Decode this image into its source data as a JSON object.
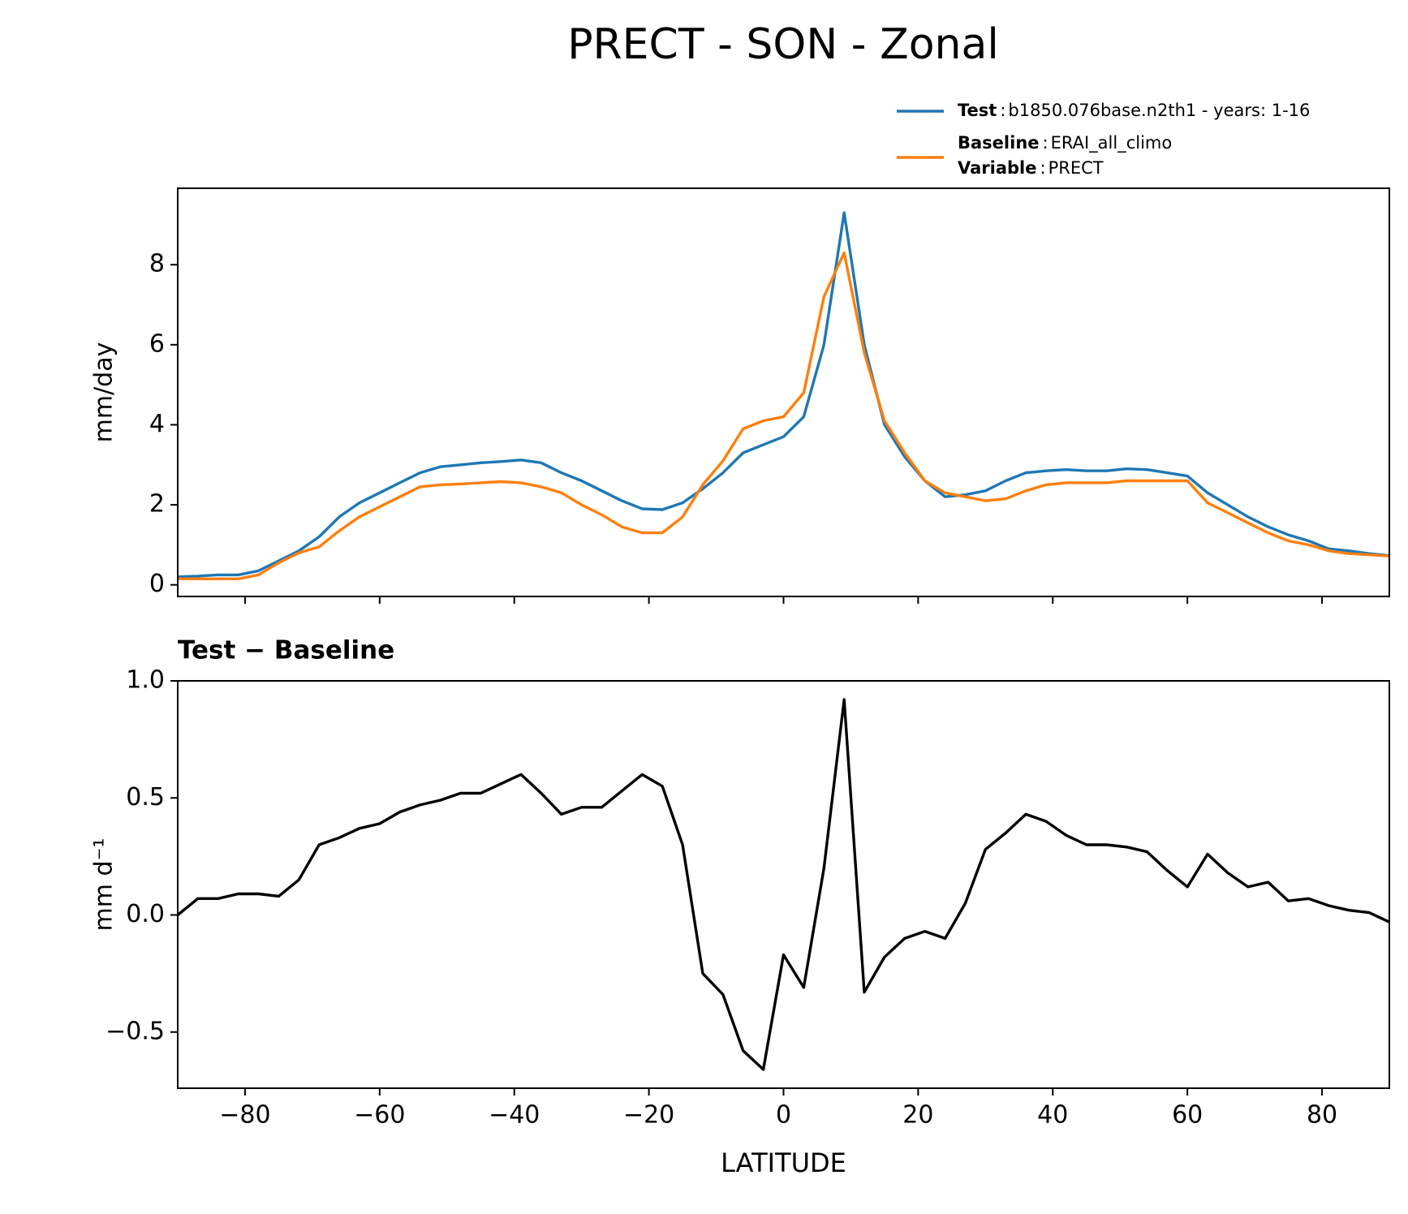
{
  "title": "PRECT - SON - Zonal",
  "chart_data": [
    {
      "type": "line",
      "ylabel": "mm/day",
      "legend": {
        "separator": ":",
        "entries": [
          {
            "name": "Test",
            "text": "b1850.076base.n2th1 - years: 1-16"
          },
          {
            "name": "Baseline",
            "text": "ERAI_all_climo"
          },
          {
            "name": "Variable",
            "text": "PRECT"
          }
        ]
      },
      "x": [
        -90,
        -87,
        -84,
        -81,
        -78,
        -75,
        -72,
        -69,
        -66,
        -63,
        -60,
        -57,
        -54,
        -51,
        -48,
        -45,
        -42,
        -39,
        -36,
        -33,
        -30,
        -27,
        -24,
        -21,
        -18,
        -15,
        -12,
        -9,
        -6,
        -3,
        0,
        3,
        6,
        9,
        12,
        15,
        18,
        21,
        24,
        27,
        30,
        33,
        36,
        39,
        42,
        45,
        48,
        51,
        54,
        57,
        60,
        63,
        66,
        69,
        72,
        75,
        78,
        81,
        84,
        87,
        90
      ],
      "series": [
        {
          "name": "Test",
          "color": "#1f77b4",
          "values": [
            0.2,
            0.22,
            0.25,
            0.25,
            0.35,
            0.6,
            0.85,
            1.2,
            1.7,
            2.05,
            2.3,
            2.55,
            2.8,
            2.95,
            3.0,
            3.05,
            3.08,
            3.12,
            3.05,
            2.8,
            2.6,
            2.35,
            2.1,
            1.9,
            1.88,
            2.05,
            2.4,
            2.8,
            3.3,
            3.5,
            3.7,
            4.2,
            6.0,
            9.3,
            6.0,
            4.0,
            3.2,
            2.6,
            2.2,
            2.25,
            2.35,
            2.6,
            2.8,
            2.85,
            2.88,
            2.85,
            2.85,
            2.9,
            2.88,
            2.8,
            2.72,
            2.3,
            2.0,
            1.7,
            1.45,
            1.25,
            1.1,
            0.9,
            0.85,
            0.78,
            0.73
          ]
        },
        {
          "name": "Baseline",
          "color": "#ff7f0e",
          "values": [
            0.15,
            0.15,
            0.15,
            0.15,
            0.25,
            0.55,
            0.8,
            0.95,
            1.35,
            1.7,
            1.95,
            2.2,
            2.45,
            2.5,
            2.52,
            2.55,
            2.58,
            2.55,
            2.45,
            2.3,
            2.0,
            1.75,
            1.45,
            1.3,
            1.3,
            1.7,
            2.5,
            3.1,
            3.9,
            4.1,
            4.2,
            4.8,
            7.2,
            8.3,
            5.8,
            4.1,
            3.3,
            2.6,
            2.3,
            2.2,
            2.1,
            2.15,
            2.35,
            2.5,
            2.55,
            2.55,
            2.55,
            2.6,
            2.6,
            2.6,
            2.6,
            2.05,
            1.8,
            1.55,
            1.3,
            1.1,
            1.0,
            0.85,
            0.78,
            0.75,
            0.72
          ]
        }
      ],
      "xlim": [
        -90,
        90
      ],
      "ylim": [
        -0.29,
        9.91
      ],
      "yticks": [
        0,
        2,
        4,
        6,
        8
      ]
    },
    {
      "type": "line",
      "title": "Test − Baseline",
      "ylabel": "mm d⁻¹",
      "xlabel": "LATITUDE",
      "x": [
        -90,
        -87,
        -84,
        -81,
        -78,
        -75,
        -72,
        -69,
        -66,
        -63,
        -60,
        -57,
        -54,
        -51,
        -48,
        -45,
        -42,
        -39,
        -36,
        -33,
        -30,
        -27,
        -24,
        -21,
        -18,
        -15,
        -12,
        -9,
        -6,
        -3,
        0,
        3,
        6,
        9,
        12,
        15,
        18,
        21,
        24,
        27,
        30,
        33,
        36,
        39,
        42,
        45,
        48,
        51,
        54,
        57,
        60,
        63,
        66,
        69,
        72,
        75,
        78,
        81,
        84,
        87,
        90
      ],
      "series": [
        {
          "name": "Test − Baseline",
          "color": "#000000",
          "values": [
            0.0,
            0.07,
            0.07,
            0.09,
            0.09,
            0.08,
            0.15,
            0.3,
            0.33,
            0.37,
            0.39,
            0.44,
            0.47,
            0.49,
            0.52,
            0.52,
            0.56,
            0.6,
            0.52,
            0.43,
            0.46,
            0.46,
            0.53,
            0.6,
            0.55,
            0.3,
            -0.25,
            -0.34,
            -0.58,
            -0.66,
            -0.17,
            -0.31,
            0.2,
            0.92,
            -0.33,
            -0.18,
            -0.1,
            -0.07,
            -0.1,
            0.05,
            0.28,
            0.35,
            0.43,
            0.4,
            0.34,
            0.3,
            0.3,
            0.29,
            0.27,
            0.19,
            0.12,
            0.26,
            0.18,
            0.12,
            0.14,
            0.06,
            0.07,
            0.04,
            0.02,
            0.01,
            -0.03
          ]
        }
      ],
      "xlim": [
        -90,
        90
      ],
      "ylim": [
        -0.74,
        1.0
      ],
      "xticks": [
        {
          "value": -80,
          "label": "−80"
        },
        {
          "value": -60,
          "label": "−60"
        },
        {
          "value": -40,
          "label": "−40"
        },
        {
          "value": -20,
          "label": "−20"
        },
        0,
        20,
        40,
        60,
        80
      ],
      "yticks": [
        {
          "value": -0.5,
          "label": "−0.5"
        },
        {
          "value": 0,
          "label": "0.0"
        },
        {
          "value": 0.5,
          "label": "0.5"
        },
        {
          "value": 1,
          "label": "1.0"
        }
      ]
    }
  ]
}
